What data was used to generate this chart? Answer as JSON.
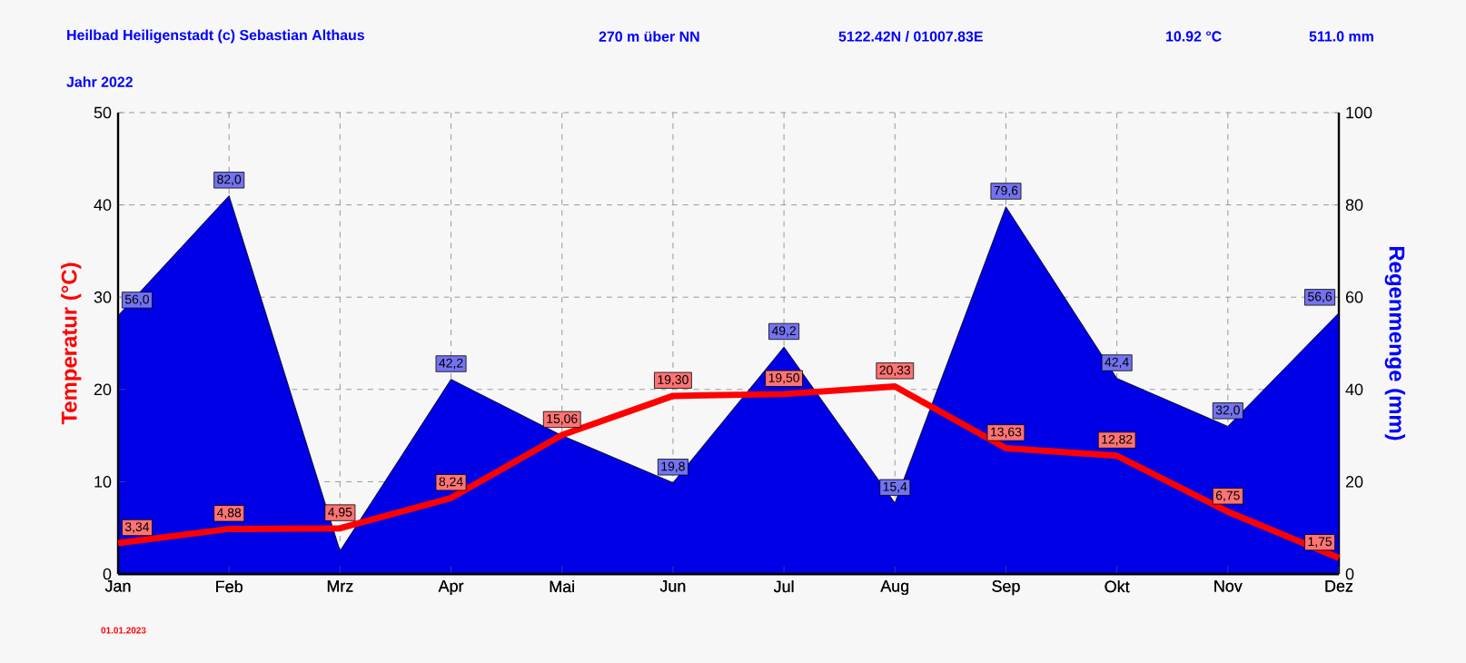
{
  "chart_data": {
    "type": "line",
    "title": "Heilbad Heiligenstadt (c) Sebastian Althaus",
    "subtitle": "Jahr  2022",
    "annotations": [
      "270 m über NN",
      "5122.42N / 01007.83E",
      "10.92 °C",
      "511.0 mm",
      "01.01.2023"
    ],
    "categories": [
      "Jan",
      "Feb",
      "Mrz",
      "Apr",
      "Mai",
      "Jun",
      "Jul",
      "Aug",
      "Sep",
      "Okt",
      "Nov",
      "Dez"
    ],
    "ylabel": "Temperatur  (°C)",
    "y2label": "Regenmenge  (mm)",
    "ylim": [
      0,
      50
    ],
    "yticks": [
      0,
      10,
      20,
      30,
      40,
      50
    ],
    "y2lim": [
      0,
      100
    ],
    "y2ticks": [
      0,
      20,
      40,
      60,
      80,
      100
    ],
    "grid": true,
    "series": [
      {
        "type": "area",
        "axis": "y2",
        "color": "#0000e6",
        "values": [
          56.0,
          82.0,
          5,
          42.2,
          30,
          19.8,
          49.2,
          15.4,
          79.6,
          42.4,
          32.0,
          56.6
        ],
        "value_labels": [
          "56,0",
          "82,0",
          null,
          "42,2",
          null,
          "19,8",
          "49,2",
          "15,4",
          "79,6",
          "42,4",
          "32,0",
          "56,6"
        ]
      },
      {
        "axis": "y",
        "color": "#ff0000",
        "values": [
          3.34,
          4.88,
          4.95,
          8.24,
          15.06,
          19.3,
          19.5,
          20.33,
          13.63,
          12.82,
          6.75,
          1.75
        ],
        "value_labels": [
          "3,34",
          "4,88",
          "4,95",
          "8,24",
          "15,06",
          "19,30",
          "19,50",
          "20,33",
          "13,63",
          "12,82",
          "6,75",
          "1,75"
        ]
      }
    ]
  }
}
